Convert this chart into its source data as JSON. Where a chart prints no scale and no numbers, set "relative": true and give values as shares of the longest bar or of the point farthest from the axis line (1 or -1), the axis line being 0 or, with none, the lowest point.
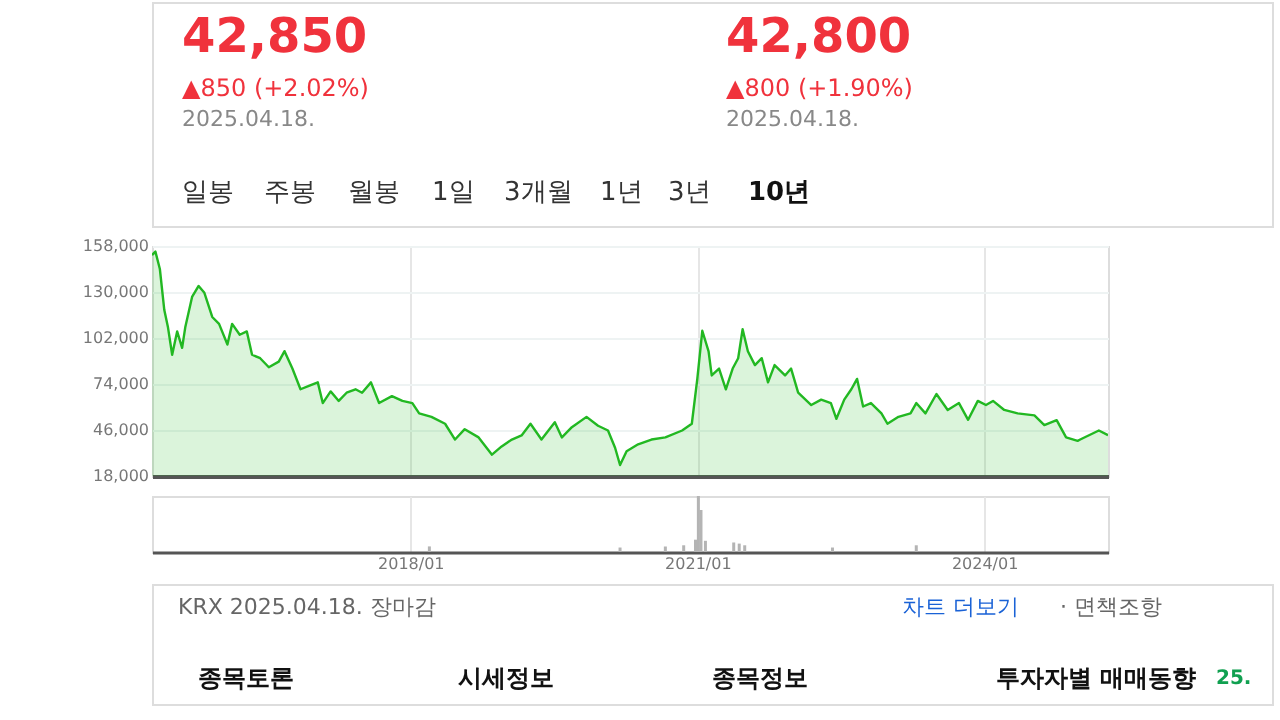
{
  "chart_data": [
    {
      "type": "area",
      "grid": true,
      "tick_labels": "y",
      "xticks": [
        {
          "value": "2018-01-01",
          "label": null
        },
        {
          "value": "2021-01-01",
          "label": null
        },
        {
          "value": "2024-01-01",
          "label": null
        }
      ],
      "annotations": [
        "42,850",
        "▲850 (+2.02%)",
        "2025.04.18.",
        "42,800",
        "▲800 (+1.90%)",
        "2025.04.18.",
        "일봉",
        "주봉",
        "월봉",
        "1일",
        "3개월",
        "1년",
        "3년",
        "10년",
        "KRX  2025.04.18. 장마감",
        "차트 더보기",
        "· 면책조항",
        "종목토론",
        "시세정보",
        "종목정보",
        "투자자별 매매동향",
        "25."
      ],
      "xlim": [
        "2015-04-21",
        "2025-04-18"
      ],
      "ylim": [
        18000,
        158000
      ],
      "yticks": [
        {
          "value": 18000,
          "label": "18,000"
        },
        {
          "value": 46000,
          "label": "46,000"
        },
        {
          "value": 74000,
          "label": "74,000"
        },
        {
          "value": 102000,
          "label": "102,000"
        },
        {
          "value": 130000,
          "label": "130,000"
        },
        {
          "value": 158000,
          "label": "158,000"
        }
      ],
      "x": [
        "2015-04-21",
        "2015-05-04",
        "2015-05-21",
        "2015-06-07",
        "2015-06-21",
        "2015-07-07",
        "2015-07-26",
        "2015-08-14",
        "2015-08-26",
        "2015-09-21",
        "2015-10-16",
        "2015-11-07",
        "2015-12-07",
        "2016-01-02",
        "2016-02-03",
        "2016-02-21",
        "2016-03-21",
        "2016-04-17",
        "2016-05-07",
        "2016-06-07",
        "2016-07-10",
        "2016-08-17",
        "2016-09-08",
        "2016-10-08",
        "2016-11-08",
        "2016-12-10",
        "2017-01-13",
        "2017-02-01",
        "2017-03-03",
        "2017-04-03",
        "2017-05-03",
        "2017-06-06",
        "2017-07-01",
        "2017-08-04",
        "2017-09-04",
        "2017-10-23",
        "2017-12-02",
        "2018-01-09",
        "2018-02-04",
        "2018-03-23",
        "2018-05-14",
        "2018-06-21",
        "2018-07-28",
        "2018-09-19",
        "2018-11-09",
        "2018-12-16",
        "2019-01-24",
        "2019-03-02",
        "2019-04-05",
        "2019-05-17",
        "2019-07-07",
        "2019-08-03",
        "2019-09-10",
        "2019-11-05",
        "2019-12-19",
        "2020-01-26",
        "2020-02-22",
        "2020-03-12",
        "2020-04-06",
        "2020-05-20",
        "2020-07-10",
        "2020-09-01",
        "2020-11-04",
        "2020-12-11",
        "2021-01-01",
        "2021-01-20",
        "2021-02-13",
        "2021-02-25",
        "2021-03-25",
        "2021-04-20",
        "2021-05-16",
        "2021-06-06",
        "2021-06-23",
        "2021-07-13",
        "2021-08-09",
        "2021-09-04",
        "2021-09-28",
        "2021-10-23",
        "2021-12-02",
        "2021-12-25",
        "2022-01-21",
        "2022-03-12",
        "2022-04-19",
        "2022-05-26",
        "2022-06-16",
        "2022-07-16",
        "2022-08-12",
        "2022-09-03",
        "2022-09-26",
        "2022-10-26",
        "2022-12-05",
        "2022-12-28",
        "2023-02-08",
        "2023-03-26",
        "2023-04-17",
        "2023-05-22",
        "2023-07-03",
        "2023-08-15",
        "2023-09-27",
        "2023-11-01",
        "2023-12-08",
        "2024-01-08",
        "2024-02-04",
        "2024-03-18",
        "2024-05-08",
        "2024-07-11",
        "2024-08-18",
        "2024-10-04",
        "2024-11-09",
        "2024-12-23",
        "2025-01-02",
        "2025-03-14",
        "2025-04-18"
      ],
      "series": [
        {
          "color": "#22b822",
          "values": [
            152500,
            154600,
            144000,
            119000,
            108500,
            91800,
            106000,
            96000,
            108500,
            127000,
            133700,
            129500,
            114800,
            110600,
            98000,
            110600,
            104000,
            106000,
            91800,
            89700,
            84200,
            87600,
            94000,
            83400,
            70800,
            72900,
            75000,
            62400,
            69500,
            63700,
            68700,
            70800,
            68700,
            75000,
            62400,
            66600,
            63700,
            62400,
            56100,
            54000,
            49800,
            40200,
            46500,
            41500,
            31000,
            36000,
            40200,
            42700,
            49800,
            40200,
            50700,
            41500,
            47700,
            54000,
            48600,
            45700,
            35200,
            24700,
            33100,
            37300,
            40200,
            41500,
            45700,
            49800,
            77100,
            106400,
            93900,
            79200,
            83400,
            70800,
            83400,
            89700,
            107300,
            93900,
            85500,
            89700,
            75000,
            85500,
            79200,
            83400,
            68700,
            61200,
            64500,
            62400,
            52800,
            64500,
            70800,
            77100,
            60300,
            62400,
            56100,
            49800,
            54000,
            56100,
            62400,
            56100,
            67900,
            58200,
            62400,
            52200,
            63700,
            61200,
            63700,
            58200,
            56100,
            54900,
            49000,
            52000,
            41500,
            39400,
            40200,
            45700,
            42850
          ]
        }
      ]
    },
    {
      "type": "bar",
      "relative": true,
      "tick_labels": "x",
      "color": "#b4b4b4",
      "grid": "x",
      "xlim": [
        "2015-04-21",
        "2025-04-18"
      ],
      "xticks": [
        {
          "value": "2018-01-01",
          "label": "2018/01"
        },
        {
          "value": "2021-01-01",
          "label": "2021/01"
        },
        {
          "value": "2024-01-01",
          "label": "2024/01"
        }
      ],
      "x": [
        "2018-03-15",
        "2020-03-12",
        "2020-09-01",
        "2020-11-10",
        "2020-12-25",
        "2021-01-05",
        "2021-01-15",
        "2021-02-01",
        "2021-05-20",
        "2021-06-10",
        "2021-07-01",
        "2022-06-01",
        "2023-04-17"
      ],
      "values": [
        0.1,
        0.08,
        0.1,
        0.12,
        0.22,
        1,
        0.75,
        0.2,
        0.17,
        0.15,
        0.12,
        0.08,
        0.12
      ]
    }
  ]
}
